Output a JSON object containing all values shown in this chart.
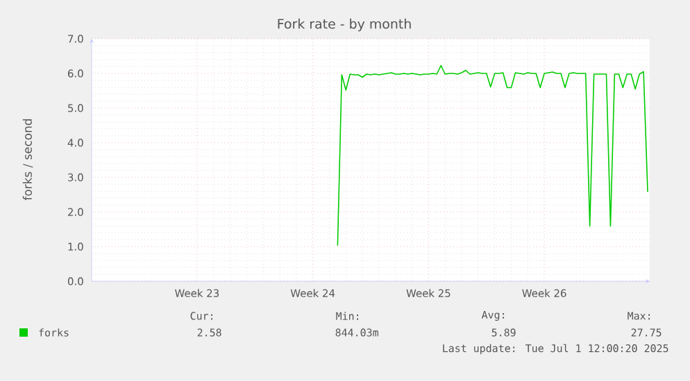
{
  "chart_data": {
    "type": "line",
    "title": "Fork rate - by month",
    "ylabel": "forks / second",
    "categories": [
      null,
      null,
      null,
      null,
      null,
      null,
      null,
      null,
      null,
      null,
      null,
      null,
      null,
      null,
      null,
      null,
      null,
      null,
      null,
      null,
      null,
      null,
      null,
      null,
      null,
      "Week 23",
      null,
      null,
      null,
      null,
      null,
      null,
      null,
      null,
      null,
      null,
      null,
      null,
      null,
      null,
      null,
      null,
      null,
      null,
      null,
      null,
      null,
      null,
      null,
      null,
      null,
      null,
      null,
      "Week 24",
      null,
      null,
      null,
      null,
      null,
      null,
      null,
      null,
      null,
      null,
      null,
      null,
      null,
      null,
      null,
      null,
      null,
      null,
      null,
      null,
      null,
      null,
      null,
      null,
      null,
      null,
      null,
      "Week 25",
      null,
      null,
      null,
      null,
      null,
      null,
      null,
      null,
      null,
      null,
      null,
      null,
      null,
      null,
      null,
      null,
      null,
      null,
      null,
      null,
      null,
      null,
      null,
      null,
      null,
      null,
      null,
      "Week 26",
      null,
      null,
      null,
      null,
      null,
      null,
      null,
      null,
      null,
      null,
      null,
      null,
      null,
      null,
      null,
      null,
      null,
      null,
      null,
      null,
      null,
      null,
      null,
      null,
      null
    ],
    "ylim": [
      0,
      7
    ],
    "yticks": [
      {
        "value": 0,
        "label": "0.0"
      },
      {
        "value": 1,
        "label": "1.0"
      },
      {
        "value": 2,
        "label": "2.0"
      },
      {
        "value": 3,
        "label": "3.0"
      },
      {
        "value": 4,
        "label": "4.0"
      },
      {
        "value": 5,
        "label": "5.0"
      },
      {
        "value": 6,
        "label": "6.0"
      },
      {
        "value": 7,
        "label": "7.0"
      }
    ],
    "grid": true,
    "legend": "bottom left",
    "marker": "none",
    "line_style": "solid",
    "series": [
      {
        "name": "forks",
        "color": "#00cc00",
        "values": [
          null,
          null,
          null,
          null,
          null,
          null,
          null,
          null,
          null,
          null,
          null,
          null,
          null,
          null,
          null,
          null,
          null,
          null,
          null,
          null,
          null,
          null,
          null,
          null,
          null,
          null,
          null,
          null,
          null,
          null,
          null,
          null,
          null,
          null,
          null,
          null,
          null,
          null,
          null,
          null,
          null,
          null,
          null,
          null,
          null,
          null,
          null,
          null,
          null,
          null,
          null,
          null,
          null,
          null,
          null,
          null,
          null,
          null,
          null,
          1.03,
          5.96,
          5.52,
          5.98,
          5.96,
          5.96,
          5.89,
          5.98,
          5.96,
          5.98,
          5.96,
          5.98,
          6.0,
          6.02,
          5.98,
          5.98,
          6.0,
          5.98,
          6.0,
          5.98,
          5.96,
          5.98,
          5.98,
          6.0,
          5.98,
          6.23,
          5.98,
          6.0,
          6.0,
          5.98,
          6.02,
          6.09,
          5.98,
          6.0,
          6.02,
          6.0,
          6.0,
          5.61,
          6.0,
          6.0,
          6.02,
          5.59,
          5.59,
          6.02,
          6.0,
          5.98,
          6.02,
          6.0,
          6.0,
          5.59,
          6.0,
          6.02,
          6.04,
          6.0,
          6.0,
          5.59,
          6.0,
          6.02,
          6.0,
          6.0,
          6.0,
          1.59,
          5.98,
          5.98,
          5.98,
          5.98,
          1.59,
          5.98,
          5.98,
          5.59,
          5.98,
          5.98,
          5.55,
          5.98,
          6.05,
          2.58
        ]
      }
    ],
    "annotations": [
      "Cur:",
      "2.58",
      "Min:",
      "844.03m",
      "Avg:",
      "5.89",
      "Max:",
      "27.75",
      "Last update: Tue Jul  1 12:00:20 2025"
    ]
  }
}
